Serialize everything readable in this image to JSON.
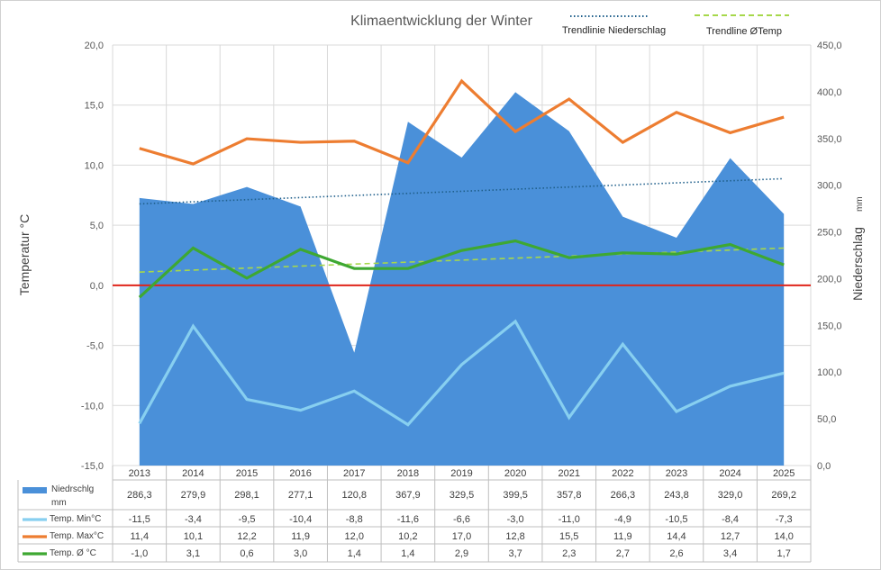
{
  "chart_data": {
    "type": "area",
    "title": "Klimaentwicklung der Winter",
    "ylabel_left": "Temperatur °C",
    "ylabel_right": "Niederschlag",
    "ylabel_right_unit": "mm",
    "categories": [
      "2013",
      "2014",
      "2015",
      "2016",
      "2017",
      "2018",
      "2019",
      "2020",
      "2021",
      "2022",
      "2023",
      "2024",
      "2025"
    ],
    "ylim_left": [
      -15,
      20
    ],
    "ylim_right": [
      0,
      450
    ],
    "left_ticks": [
      "-15,0",
      "-10,0",
      "-5,0",
      "0,0",
      "5,0",
      "10,0",
      "15,0",
      "20,0"
    ],
    "right_ticks": [
      "0,0",
      "50,0",
      "100,0",
      "150,0",
      "200,0",
      "250,0",
      "300,0",
      "350,0",
      "400,0",
      "450,0"
    ],
    "grid": true,
    "legend_position": "top-right",
    "series": [
      {
        "name": "Niedrschlg mm",
        "axis": "right",
        "kind": "area",
        "color": "#4a90d9",
        "values": [
          286.3,
          279.9,
          298.1,
          277.1,
          120.8,
          367.9,
          329.5,
          399.5,
          357.8,
          266.3,
          243.8,
          329.0,
          269.2
        ],
        "labels": [
          "286,3",
          "279,9",
          "298,1",
          "277,1",
          "120,8",
          "367,9",
          "329,5",
          "399,5",
          "357,8",
          "266,3",
          "243,8",
          "329,0",
          "269,2"
        ]
      },
      {
        "name": "Temp. Min°C",
        "axis": "left",
        "kind": "line",
        "color": "#87cff0",
        "values": [
          -11.5,
          -3.4,
          -9.5,
          -10.4,
          -8.8,
          -11.6,
          -6.6,
          -3.0,
          -11.0,
          -4.9,
          -10.5,
          -8.4,
          -7.3
        ],
        "labels": [
          "-11,5",
          "-3,4",
          "-9,5",
          "-10,4",
          "-8,8",
          "-11,6",
          "-6,6",
          "-3,0",
          "-11,0",
          "-4,9",
          "-10,5",
          "-8,4",
          "-7,3"
        ]
      },
      {
        "name": "Temp. Max°C",
        "axis": "left",
        "kind": "line",
        "color": "#ed7d31",
        "values": [
          11.4,
          10.1,
          12.2,
          11.9,
          12.0,
          10.2,
          17.0,
          12.8,
          15.5,
          11.9,
          14.4,
          12.7,
          14.0
        ],
        "labels": [
          "11,4",
          "10,1",
          "12,2",
          "11,9",
          "12,0",
          "10,2",
          "17,0",
          "12,8",
          "15,5",
          "11,9",
          "14,4",
          "12,7",
          "14,0"
        ]
      },
      {
        "name": "Temp. Ø °C",
        "axis": "left",
        "kind": "line",
        "color": "#3ea832",
        "values": [
          -1.0,
          3.1,
          0.6,
          3.0,
          1.4,
          1.4,
          2.9,
          3.7,
          2.3,
          2.7,
          2.6,
          3.4,
          1.7
        ],
        "labels": [
          "-1,0",
          "3,1",
          "0,6",
          "3,0",
          "1,4",
          "1,4",
          "2,9",
          "3,7",
          "2,3",
          "2,7",
          "2,6",
          "3,4",
          "1,7"
        ]
      }
    ],
    "trendlines": [
      {
        "name": "Trendlinie Niederschlag",
        "axis": "right",
        "color": "#1f5f8b",
        "style": "dotted",
        "start": 280,
        "end": 307
      },
      {
        "name": "Trendline ØTemp",
        "axis": "left",
        "color": "#a6d84a",
        "style": "dashed",
        "start": 1.1,
        "end": 3.1
      }
    ],
    "zero_line": {
      "value": 0,
      "axis": "left",
      "color": "#e0241b"
    }
  }
}
